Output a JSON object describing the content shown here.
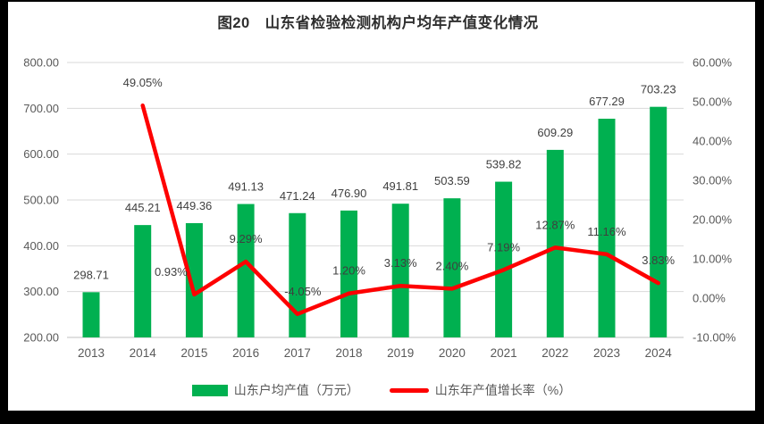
{
  "title": "图20　山东省检验检测机构户均年产值变化情况",
  "colors": {
    "bar_green": "#00B050",
    "line_red": "#FE0000",
    "gridline": "#D9D9D9",
    "axis_line": "#C0C0C0",
    "axis_text": "#595959",
    "data_label_text": "#3F3F3F",
    "title_text": "#2E2E2E",
    "frame_background": "#000000",
    "page_background": "#FFFFFF"
  },
  "chart_data": {
    "type": "bar",
    "subtype": "bar-with-line-overlay",
    "title": "图20　山东省检验检测机构户均年产值变化情况",
    "categories": [
      "2013",
      "2014",
      "2015",
      "2016",
      "2017",
      "2018",
      "2019",
      "2020",
      "2021",
      "2022",
      "2023",
      "2024"
    ],
    "series": [
      {
        "name": "山东户均产值（万元）",
        "type": "bar",
        "axis": "left",
        "color": "#00B050",
        "values": [
          298.71,
          445.21,
          449.36,
          491.13,
          471.24,
          476.9,
          491.81,
          503.59,
          539.82,
          609.29,
          677.29,
          703.23
        ],
        "labels": [
          "298.71",
          "445.21",
          "449.36",
          "491.13",
          "471.24",
          "476.90",
          "491.81",
          "503.59",
          "539.82",
          "609.29",
          "677.29",
          "703.23"
        ]
      },
      {
        "name": "山东年产值增长率（%）",
        "type": "line",
        "axis": "right",
        "color": "#FE0000",
        "values": [
          null,
          49.05,
          0.93,
          9.29,
          -4.05,
          1.2,
          3.13,
          2.4,
          7.19,
          12.87,
          11.16,
          3.83
        ],
        "labels": [
          null,
          "49.05%",
          "0.93%",
          "9.29%",
          "-4.05%",
          "1.20%",
          "3.13%",
          "2.40%",
          "7.19%",
          "12.87%",
          "11.16%",
          "3.83%"
        ]
      }
    ],
    "left_axis": {
      "min": 200,
      "max": 800,
      "step": 100,
      "tick_values": [
        200,
        300,
        400,
        500,
        600,
        700,
        800
      ],
      "tick_labels": [
        "200.00",
        "300.00",
        "400.00",
        "500.00",
        "600.00",
        "700.00",
        "800.00"
      ]
    },
    "right_axis": {
      "min": -10,
      "max": 60,
      "step": 10,
      "tick_values": [
        -10,
        0,
        10,
        20,
        30,
        40,
        50,
        60
      ],
      "tick_labels": [
        "-10.00%",
        "0.00%",
        "10.00%",
        "20.00%",
        "30.00%",
        "40.00%",
        "50.00%",
        "60.00%"
      ]
    },
    "grid": true,
    "legend_position": "bottom"
  },
  "legend": {
    "items": [
      {
        "label": "山东户均产值（万元）",
        "swatch": "bar",
        "color": "#00B050"
      },
      {
        "label": "山东年产值增长率（%）",
        "swatch": "line",
        "color": "#FE0000"
      }
    ]
  }
}
